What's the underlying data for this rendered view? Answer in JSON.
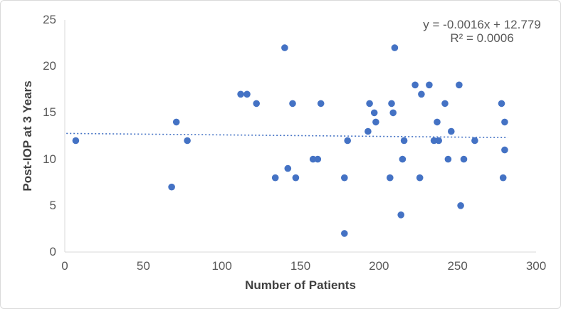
{
  "figure": {
    "background_color": "#ffffff",
    "border_color": "#d9d9d9"
  },
  "chart_data": {
    "type": "scatter",
    "title": "",
    "xlabel": "Number of Patients",
    "ylabel": "Post-IOP at 3 Years",
    "xlim": [
      0,
      300
    ],
    "ylim": [
      0,
      25
    ],
    "x_ticks": [
      0,
      50,
      100,
      150,
      200,
      250,
      300
    ],
    "y_ticks": [
      0,
      5,
      10,
      15,
      20,
      25
    ],
    "grid": false,
    "legend_position": "none",
    "marker_color": "#4472c4",
    "axis_line_color": "#d9d9d9",
    "points": [
      [
        7,
        12
      ],
      [
        68,
        7
      ],
      [
        71,
        14
      ],
      [
        78,
        12
      ],
      [
        112,
        17
      ],
      [
        116,
        17
      ],
      [
        122,
        16
      ],
      [
        134,
        8
      ],
      [
        140,
        22
      ],
      [
        142,
        9
      ],
      [
        145,
        16
      ],
      [
        147,
        8
      ],
      [
        158,
        10
      ],
      [
        161,
        10
      ],
      [
        163,
        16
      ],
      [
        178,
        2
      ],
      [
        178,
        8
      ],
      [
        180,
        12
      ],
      [
        193,
        13
      ],
      [
        194,
        16
      ],
      [
        197,
        15
      ],
      [
        198,
        14
      ],
      [
        207,
        8
      ],
      [
        208,
        16
      ],
      [
        209,
        15
      ],
      [
        210,
        22
      ],
      [
        214,
        4
      ],
      [
        215,
        10
      ],
      [
        216,
        12
      ],
      [
        223,
        18
      ],
      [
        226,
        8
      ],
      [
        227,
        17
      ],
      [
        232,
        18
      ],
      [
        235,
        12
      ],
      [
        237,
        14
      ],
      [
        238,
        12
      ],
      [
        242,
        16
      ],
      [
        244,
        10
      ],
      [
        246,
        13
      ],
      [
        251,
        18
      ],
      [
        252,
        5
      ],
      [
        254,
        10
      ],
      [
        261,
        12
      ],
      [
        278,
        16
      ],
      [
        279,
        8
      ],
      [
        280,
        11
      ],
      [
        280,
        14
      ]
    ],
    "trendline": {
      "type": "linear",
      "style": "dotted",
      "color": "#4472c4",
      "slope": -0.0016,
      "intercept": 12.779,
      "x_start": 1,
      "x_end": 282,
      "equation_label": "y = -0.0016x + 12.779",
      "r_squared_label": "R² = 0.0006"
    }
  }
}
